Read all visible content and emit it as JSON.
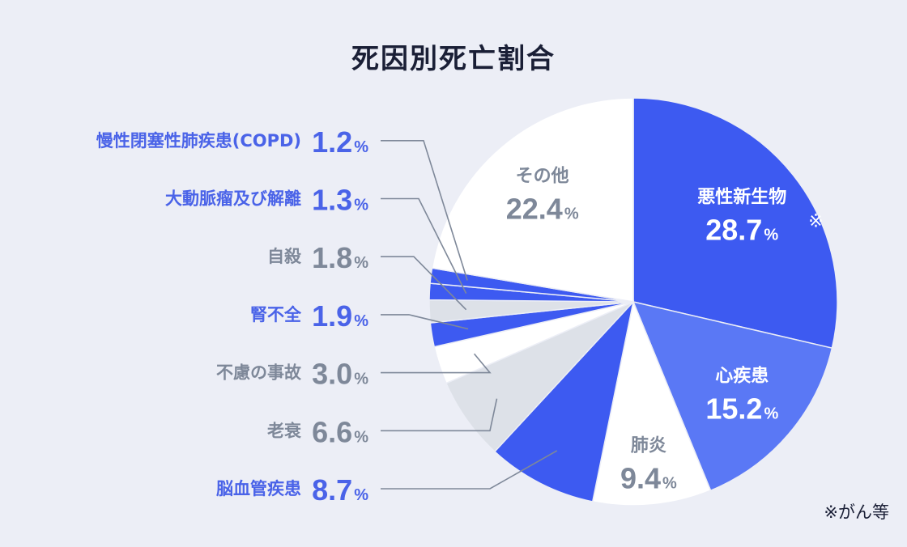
{
  "chart_data": {
    "type": "pie",
    "title": "死因別死亡割合",
    "note": "※がん等",
    "percent_sign": "%",
    "slices": [
      {
        "label": "悪性新生物",
        "value": 28.7,
        "value_text": "28.7",
        "mark": "※",
        "color": "#3d5af1",
        "text_color": "#ffffff",
        "label_pos": "inside"
      },
      {
        "label": "心疾患",
        "value": 15.2,
        "value_text": "15.2",
        "color": "#5a78f5",
        "text_color": "#ffffff",
        "label_pos": "inside"
      },
      {
        "label": "肺炎",
        "value": 9.4,
        "value_text": "9.4",
        "color": "#ffffff",
        "text_color": "#7e8899",
        "label_pos": "inside"
      },
      {
        "label": "脳血管疾患",
        "value": 8.7,
        "value_text": "8.7",
        "color": "#3d5af1",
        "text_color": "#4a63e8",
        "label_pos": "outside"
      },
      {
        "label": "老衰",
        "value": 6.6,
        "value_text": "6.6",
        "color": "#dde1e8",
        "text_color": "#7e8899",
        "label_pos": "outside"
      },
      {
        "label": "不慮の事故",
        "value": 3.0,
        "value_text": "3.0",
        "color": "#ffffff",
        "text_color": "#7e8899",
        "label_pos": "outside"
      },
      {
        "label": "腎不全",
        "value": 1.9,
        "value_text": "1.9",
        "color": "#3d5af1",
        "text_color": "#4a63e8",
        "label_pos": "outside"
      },
      {
        "label": "自殺",
        "value": 1.8,
        "value_text": "1.8",
        "color": "#dde1e8",
        "text_color": "#7e8899",
        "label_pos": "outside"
      },
      {
        "label": "大動脈瘤及び解離",
        "value": 1.3,
        "value_text": "1.3",
        "color": "#3d5af1",
        "text_color": "#4a63e8",
        "label_pos": "outside"
      },
      {
        "label": "慢性閉塞性肺疾患(COPD)",
        "value": 1.2,
        "value_text": "1.2",
        "color": "#3d5af1",
        "text_color": "#4a63e8",
        "label_pos": "outside"
      },
      {
        "label": "その他",
        "value": 22.4,
        "value_text": "22.4",
        "color": "#ffffff",
        "text_color": "#7e8899",
        "label_pos": "inside"
      }
    ]
  }
}
